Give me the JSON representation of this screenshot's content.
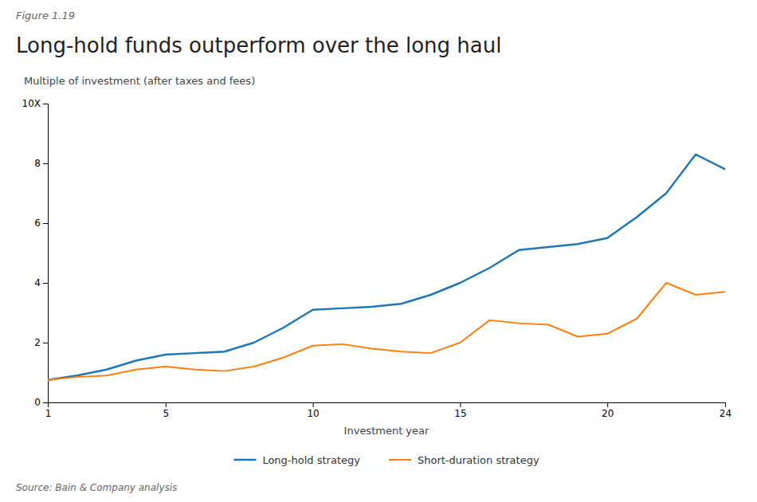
{
  "chart_data": {
    "type": "line",
    "figure_label": "Figure 1.19",
    "title": "Long-hold funds outperform over the long haul",
    "ylabel": "Multiple of investment (after taxes and fees)",
    "xlabel": "Investment year",
    "source": "Source: Bain & Company analysis",
    "x": [
      1,
      2,
      3,
      4,
      5,
      6,
      7,
      8,
      9,
      10,
      11,
      12,
      13,
      14,
      15,
      16,
      17,
      18,
      19,
      20,
      21,
      22,
      23,
      24
    ],
    "series": [
      {
        "name": "Long-hold strategy",
        "values": [
          0.75,
          0.9,
          1.1,
          1.4,
          1.6,
          1.65,
          1.7,
          2.0,
          2.5,
          3.1,
          3.15,
          3.2,
          3.3,
          3.6,
          4.0,
          4.5,
          5.1,
          5.2,
          5.3,
          5.5,
          6.2,
          7.0,
          8.3,
          7.8
        ]
      },
      {
        "name": "Short-duration strategy",
        "values": [
          0.75,
          0.85,
          0.9,
          1.1,
          1.2,
          1.1,
          1.05,
          1.2,
          1.5,
          1.9,
          1.95,
          1.8,
          1.7,
          1.65,
          2.0,
          2.75,
          2.65,
          2.6,
          2.2,
          2.3,
          2.8,
          4.0,
          3.6,
          3.7
        ]
      }
    ],
    "xlim": [
      1,
      24
    ],
    "ylim": [
      0,
      10
    ],
    "xticks": [
      1,
      5,
      10,
      15,
      20,
      24
    ],
    "yticks": [
      0,
      2,
      4,
      6,
      8,
      {
        "value": 10,
        "label": "10X"
      }
    ],
    "grid": false,
    "legend": "bottom"
  }
}
